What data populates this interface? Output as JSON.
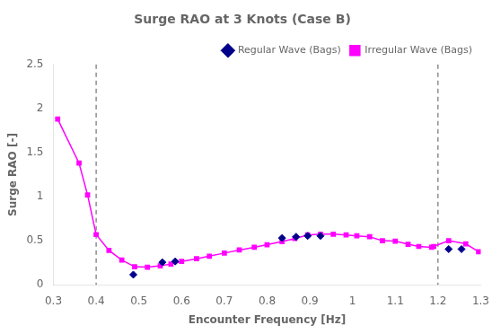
{
  "chart_data": {
    "type": "line",
    "title": "Surge RAO at 3 Knots (Case B)",
    "xlabel": "Encounter Frequency [Hz]",
    "ylabel": "Surge RAO [-]",
    "xlim": [
      0.3,
      1.3
    ],
    "ylim": [
      0,
      2.5
    ],
    "xticks": [
      0.3,
      0.4,
      0.5,
      0.6,
      0.7,
      0.8,
      0.9,
      1,
      1.1,
      1.2,
      1.3
    ],
    "yticks": [
      0,
      0.5,
      1,
      1.5,
      2,
      2.5
    ],
    "grid": false,
    "legend": "upper right",
    "vlines": [
      0.4,
      1.2
    ],
    "series": [
      {
        "name": "Regular Wave (Bags)",
        "color": "#00008B",
        "marker": "diamond",
        "line_style": "none",
        "x": [
          0.487,
          0.555,
          0.585,
          0.835,
          0.868,
          0.895,
          0.925,
          1.225,
          1.255
        ],
        "values": [
          0.115,
          0.255,
          0.265,
          0.53,
          0.545,
          0.555,
          0.555,
          0.405,
          0.405
        ]
      },
      {
        "name": "Irregular Wave (Bags)",
        "color": "#FF00FF",
        "marker": "square",
        "line_style": "solid",
        "x": [
          0.31,
          0.36,
          0.38,
          0.4,
          0.43,
          0.46,
          0.49,
          0.52,
          0.55,
          0.575,
          0.6,
          0.635,
          0.665,
          0.7,
          0.735,
          0.77,
          0.8,
          0.835,
          0.865,
          0.895,
          0.925,
          0.955,
          0.985,
          1.01,
          1.04,
          1.07,
          1.1,
          1.13,
          1.155,
          1.185,
          1.19,
          1.225,
          1.265,
          1.295
        ],
        "values": [
          1.88,
          1.38,
          1.02,
          0.57,
          0.39,
          0.28,
          0.205,
          0.2,
          0.215,
          0.235,
          0.265,
          0.295,
          0.325,
          0.36,
          0.395,
          0.425,
          0.455,
          0.49,
          0.525,
          0.565,
          0.575,
          0.575,
          0.565,
          0.555,
          0.545,
          0.5,
          0.495,
          0.46,
          0.435,
          0.425,
          0.435,
          0.5,
          0.465,
          0.375
        ]
      }
    ]
  }
}
